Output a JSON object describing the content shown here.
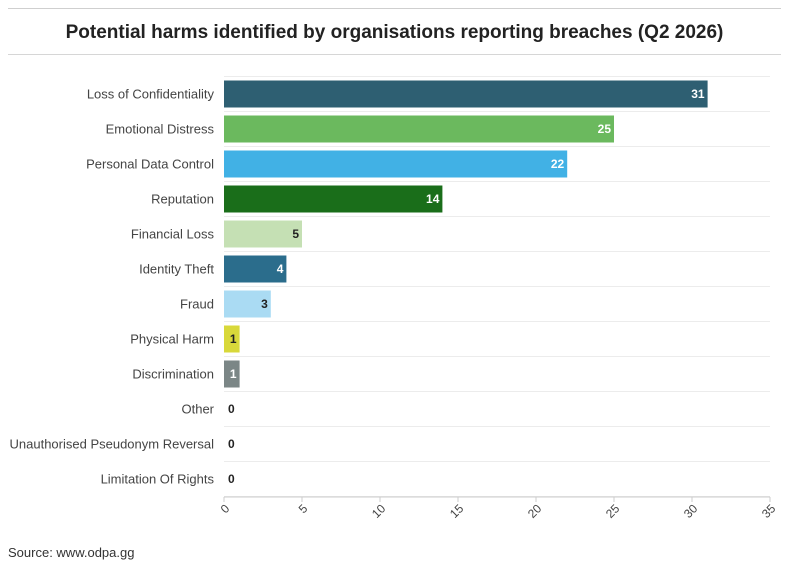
{
  "title": "Potential harms identified by organisations reporting breaches (Q2 2026)",
  "source": "Source: www.odpa.gg",
  "chart_data": {
    "type": "bar",
    "orientation": "horizontal",
    "title": "Potential harms identified by organisations reporting breaches (Q2 2026)",
    "xlabel": "",
    "ylabel": "",
    "xlim": [
      0,
      35
    ],
    "xticks": [
      0,
      5,
      10,
      15,
      20,
      25,
      30,
      35
    ],
    "grid": true,
    "legend": "none",
    "categories": [
      "Loss of Confidentiality",
      "Emotional Distress",
      "Personal Data Control",
      "Reputation",
      "Financial Loss",
      "Identity Theft",
      "Fraud",
      "Physical Harm",
      "Discrimination",
      "Other",
      "Unauthorised Pseudonym Reversal",
      "Limitation Of Rights"
    ],
    "values": [
      31,
      25,
      22,
      14,
      5,
      4,
      3,
      1,
      1,
      0,
      0,
      0
    ],
    "colors": [
      "#2e5f72",
      "#6bb95e",
      "#41b1e5",
      "#1a6e1a",
      "#c5e0b4",
      "#2b6d8c",
      "#aadbf3",
      "#d8d83a",
      "#7b8686",
      "#999999",
      "#999999",
      "#999999"
    ],
    "label_colors": [
      "#ffffff",
      "#ffffff",
      "#ffffff",
      "#ffffff",
      "#222222",
      "#ffffff",
      "#222222",
      "#222222",
      "#ffffff",
      "#222222",
      "#222222",
      "#222222"
    ]
  }
}
